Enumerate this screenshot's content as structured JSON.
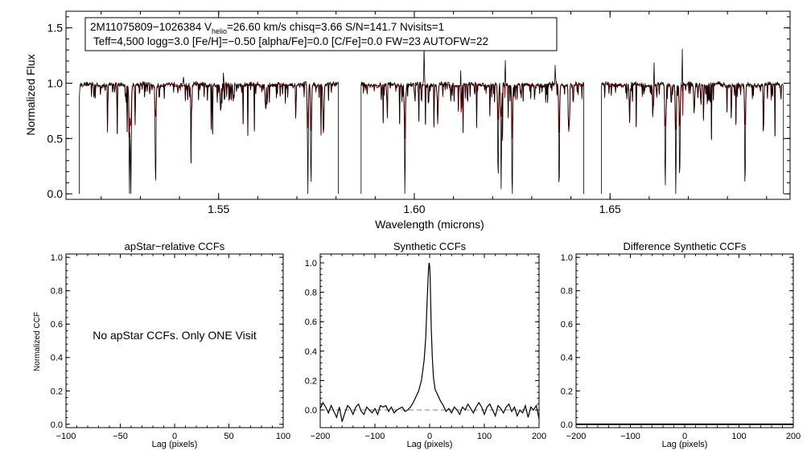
{
  "colors": {
    "observed": "#000000",
    "model": "#cc0000",
    "dashed": "#808080",
    "axis": "#000000",
    "background": "#ffffff"
  },
  "chart_data": [
    {
      "id": "spectrum",
      "type": "line",
      "title": "",
      "xlabel": "Wavelength (microns)",
      "ylabel": "Normalized Flux",
      "xlim": [
        1.511,
        1.696
      ],
      "ylim": [
        -0.05,
        1.65
      ],
      "xticks": [
        1.55,
        1.6,
        1.65
      ],
      "xtick_labels": [
        "1.55",
        "1.60",
        "1.65"
      ],
      "yticks": [
        0.0,
        0.5,
        1.0,
        1.5
      ],
      "ytick_labels": [
        "0.0",
        "0.5",
        "1.0",
        "1.5"
      ],
      "info_box": {
        "line1_a": "2M11075809−1026384  V",
        "line1_sub": "helio",
        "line1_b": "=26.60 km/s  chisq=3.66  S/N=141.7  Nvisits=1",
        "line2_a": "Teff=4,500 logg=3.0 [Fe/H]=−0.50 [alpha/Fe]=0.0 [C/Fe]=0.0 FW=23 AUTOFW=22"
      },
      "chips": [
        [
          1.5144,
          1.5806
        ],
        [
          1.5864,
          1.6433
        ],
        [
          1.6478,
          1.6943
        ]
      ],
      "lines": [
        {
          "w": 1.5272,
          "d": 1.0,
          "m": 0.35
        },
        {
          "w": 1.5276,
          "d": 0.95,
          "m": 0.3
        },
        {
          "w": 1.5339,
          "d": 1.0,
          "m": 0.3
        },
        {
          "w": 1.5728,
          "d": 1.0,
          "m": 0.4
        },
        {
          "w": 1.5736,
          "d": 0.95,
          "m": 0.45
        },
        {
          "w": 1.5768,
          "d": 0.45,
          "m": 0.45
        },
        {
          "w": 1.5976,
          "d": 1.0,
          "m": 0.4
        },
        {
          "w": 1.6214,
          "d": 0.95,
          "m": 0.35
        },
        {
          "w": 1.6222,
          "d": 1.0,
          "m": 0.3
        },
        {
          "w": 1.625,
          "d": 1.0,
          "m": 0.35
        },
        {
          "w": 1.637,
          "d": 1.0,
          "m": 0.4
        },
        {
          "w": 1.6395,
          "d": 0.4,
          "m": 0.4
        },
        {
          "w": 1.6641,
          "d": 1.0,
          "m": 0.4
        },
        {
          "w": 1.6668,
          "d": 1.0,
          "m": 0.4
        },
        {
          "w": 1.6678,
          "d": 0.9,
          "m": 0.4
        },
        {
          "w": 1.6715,
          "d": 0.25,
          "m": 0.25
        },
        {
          "w": 1.6845,
          "d": 1.0,
          "m": 0.4
        },
        {
          "w": 1.543,
          "d": 0.28,
          "m": 0.28
        },
        {
          "w": 1.5505,
          "d": 0.22,
          "m": 0.22
        },
        {
          "w": 1.562,
          "d": 0.2,
          "m": 0.2
        },
        {
          "w": 1.606,
          "d": 0.25,
          "m": 0.25
        },
        {
          "w": 1.612,
          "d": 0.25,
          "m": 0.25
        },
        {
          "w": 1.655,
          "d": 0.25,
          "m": 0.25
        },
        {
          "w": 1.661,
          "d": 0.2,
          "m": 0.2
        }
      ],
      "spikes": [
        {
          "w": 1.6025,
          "h": 0.35
        },
        {
          "w": 1.6119,
          "h": 0.32
        },
        {
          "w": 1.6232,
          "h": 0.3
        },
        {
          "w": 1.6612,
          "h": 0.3
        },
        {
          "w": 1.6685,
          "h": 0.45
        },
        {
          "w": 1.636,
          "h": 0.18
        },
        {
          "w": 1.5512,
          "h": 0.12
        },
        {
          "w": 1.541,
          "h": 0.1
        }
      ]
    },
    {
      "id": "apstar-ccf",
      "type": "line",
      "title": "apStar−relative CCFs",
      "xlabel": "Lag (pixels)",
      "ylabel": "Normalized CCF",
      "xlim": [
        -100,
        100
      ],
      "ylim": [
        -0.02,
        1.02
      ],
      "xticks": [
        -100,
        -50,
        0,
        50,
        100
      ],
      "xtick_labels": [
        "−100",
        "−50",
        "0",
        "50",
        "100"
      ],
      "yticks": [
        0.0,
        0.2,
        0.4,
        0.6,
        0.8,
        1.0
      ],
      "ytick_labels": [
        "0.0",
        "0.2",
        "0.4",
        "0.6",
        "0.8",
        "1.0"
      ],
      "annotation": "No apStar CCFs.  Only ONE Visit",
      "series": []
    },
    {
      "id": "synthetic-ccf",
      "type": "line",
      "title": "Synthetic CCFs",
      "xlabel": "Lag (pixels)",
      "ylabel": "",
      "xlim": [
        -200,
        200
      ],
      "ylim": [
        -0.12,
        1.06
      ],
      "xticks": [
        -200,
        -100,
        0,
        100,
        200
      ],
      "xtick_labels": [
        "−200",
        "−100",
        "0",
        "100",
        "200"
      ],
      "yticks": [
        0.0,
        0.2,
        0.4,
        0.6,
        0.8,
        1.0
      ],
      "ytick_labels": [
        "0.0",
        "0.2",
        "0.4",
        "0.6",
        "0.8",
        "1.0"
      ],
      "baseline": 0.0,
      "series": [
        {
          "name": "CCF",
          "x": [
            -200,
            -195,
            -190,
            -185,
            -180,
            -175,
            -170,
            -165,
            -160,
            -155,
            -150,
            -145,
            -140,
            -135,
            -130,
            -125,
            -120,
            -115,
            -110,
            -105,
            -100,
            -95,
            -90,
            -85,
            -80,
            -75,
            -70,
            -65,
            -60,
            -55,
            -50,
            -45,
            -40,
            -35,
            -30,
            -25,
            -20,
            -15,
            -10,
            -7,
            -5,
            -3,
            -2,
            -1,
            0,
            1,
            2,
            3,
            5,
            7,
            10,
            15,
            20,
            25,
            30,
            35,
            40,
            45,
            50,
            55,
            60,
            65,
            70,
            75,
            80,
            85,
            90,
            95,
            100,
            105,
            110,
            115,
            120,
            125,
            130,
            135,
            140,
            145,
            150,
            155,
            160,
            165,
            170,
            175,
            180,
            185,
            190,
            195,
            200
          ],
          "y": [
            0.01,
            0.05,
            0.02,
            -0.02,
            0.03,
            -0.01,
            -0.05,
            0.02,
            -0.08,
            -0.02,
            0.03,
            0.01,
            -0.03,
            0.02,
            0.04,
            -0.01,
            -0.03,
            0.02,
            0.0,
            -0.02,
            0.01,
            -0.03,
            0.03,
            0.02,
            0.03,
            -0.01,
            0.02,
            -0.02,
            0.0,
            0.01,
            0.02,
            -0.01,
            0.0,
            0.02,
            0.05,
            0.09,
            0.13,
            0.2,
            0.34,
            0.5,
            0.7,
            0.88,
            0.96,
            1.0,
            0.98,
            0.9,
            0.72,
            0.55,
            0.35,
            0.22,
            0.14,
            0.1,
            0.06,
            0.03,
            -0.01,
            0.01,
            -0.02,
            0.02,
            0.0,
            -0.03,
            0.02,
            0.0,
            0.04,
            0.01,
            -0.02,
            0.02,
            0.05,
            0.02,
            -0.03,
            0.02,
            0.04,
            0.0,
            -0.04,
            0.03,
            0.01,
            -0.02,
            0.02,
            0.04,
            -0.01,
            0.02,
            -0.04,
            0.0,
            -0.02,
            0.03,
            -0.05,
            0.02,
            0.0,
            0.03,
            -0.06
          ]
        }
      ]
    },
    {
      "id": "difference-ccf",
      "type": "line",
      "title": "Difference Synthetic CCFs",
      "xlabel": "Lag (pixels)",
      "ylabel": "",
      "xlim": [
        -200,
        200
      ],
      "ylim": [
        -0.02,
        1.02
      ],
      "xticks": [
        -200,
        -100,
        0,
        100,
        200
      ],
      "xtick_labels": [
        "−200",
        "−100",
        "0",
        "100",
        "200"
      ],
      "yticks": [
        0.0,
        0.2,
        0.4,
        0.6,
        0.8,
        1.0
      ],
      "ytick_labels": [
        "0.0",
        "0.2",
        "0.4",
        "0.6",
        "0.8",
        "1.0"
      ],
      "series": [
        {
          "name": "difference",
          "x": [
            -200,
            200
          ],
          "y": [
            0.0,
            0.0
          ]
        }
      ]
    }
  ]
}
